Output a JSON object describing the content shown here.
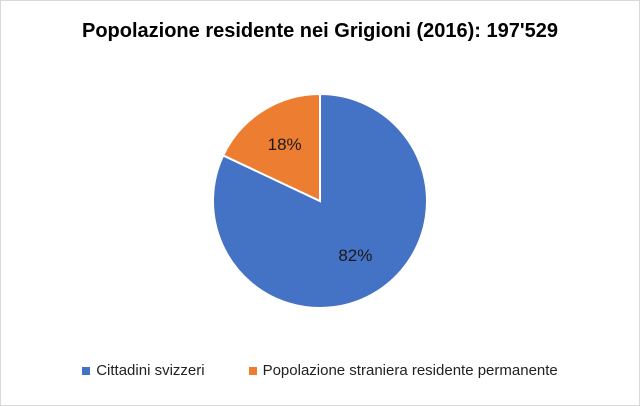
{
  "chart_data": {
    "type": "pie",
    "title": "Popolazione residente nei Grigioni (2016): 197'529",
    "categories": [
      "Cittadini svizzeri",
      "Popolazione straniera residente permanente"
    ],
    "values": [
      82,
      18
    ],
    "labels": [
      "82%",
      "18%"
    ],
    "colors": [
      "#4472C4",
      "#ED7D31"
    ],
    "legend_position": "bottom"
  }
}
